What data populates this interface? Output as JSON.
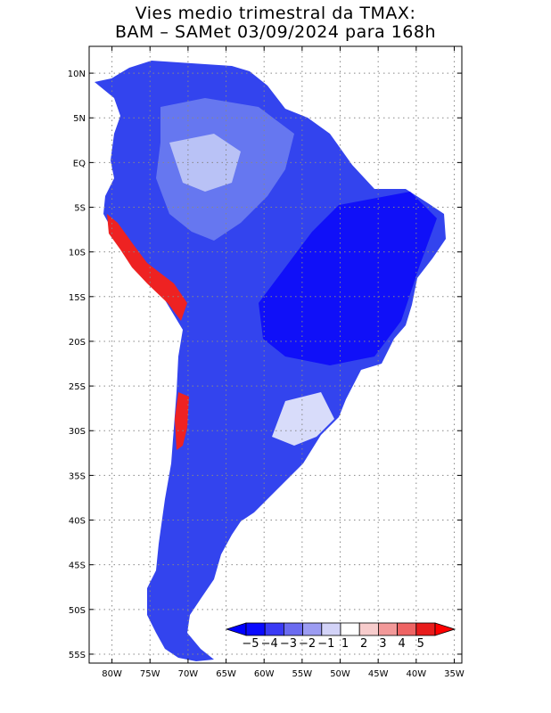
{
  "title": {
    "line1": "Vies medio trimestral da TMAX:",
    "line2": "BAM – SAMet 03/09/2024  para 168h"
  },
  "map": {
    "lon_labels": [
      "80W",
      "75W",
      "70W",
      "65W",
      "60W",
      "55W",
      "50W",
      "45W",
      "40W",
      "35W"
    ],
    "lat_labels": [
      "10N",
      "5N",
      "EQ",
      "5S",
      "10S",
      "15S",
      "20S",
      "25S",
      "30S",
      "35S",
      "40S",
      "45S",
      "50S",
      "55S"
    ],
    "lon_range": [
      -83,
      -34
    ],
    "lat_range": [
      -56,
      13
    ],
    "grid": true
  },
  "colorbar": {
    "labels": [
      "−5",
      "−4",
      "−3",
      "−2",
      "−1",
      "1",
      "2",
      "3",
      "4",
      "5"
    ],
    "colors": [
      "#0a0aff",
      "#3a3af5",
      "#6b6bf0",
      "#9c9cf2",
      "#d3d3f8",
      "#ffffff",
      "#f7cccc",
      "#f29999",
      "#ee6464",
      "#e81c1c"
    ],
    "under_color": "#0000ff",
    "over_color": "#ff0000"
  }
}
